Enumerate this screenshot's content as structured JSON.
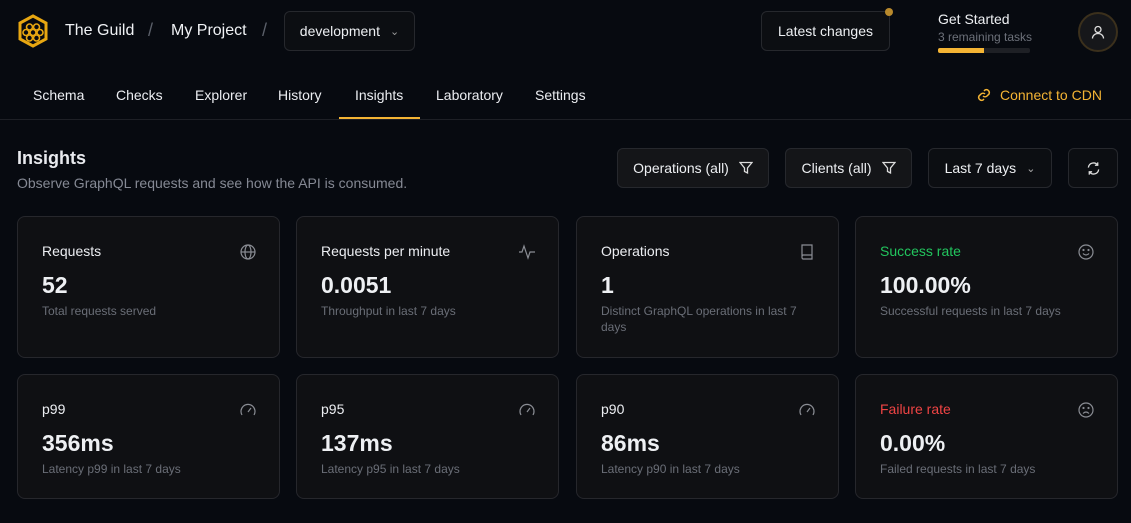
{
  "header": {
    "org": "The Guild",
    "project": "My Project",
    "target": "development",
    "latest_changes": "Latest changes",
    "get_started": {
      "title": "Get Started",
      "subtitle": "3 remaining tasks",
      "progress": 0.5
    }
  },
  "nav": {
    "tabs": [
      "Schema",
      "Checks",
      "Explorer",
      "History",
      "Insights",
      "Laboratory",
      "Settings"
    ],
    "active": "Insights",
    "cdn": "Connect to CDN"
  },
  "page": {
    "title": "Insights",
    "subtitle": "Observe GraphQL requests and see how the API is consumed.",
    "filters": {
      "operations": "Operations (all)",
      "clients": "Clients (all)",
      "range": "Last 7 days"
    }
  },
  "cards": [
    {
      "title": "Requests",
      "value": "52",
      "desc": "Total requests served",
      "icon": "globe-icon"
    },
    {
      "title": "Requests per minute",
      "value": "0.0051",
      "desc": "Throughput in last 7 days",
      "icon": "activity-icon"
    },
    {
      "title": "Operations",
      "value": "1",
      "desc": "Distinct GraphQL operations in last 7 days",
      "icon": "book-icon"
    },
    {
      "title": "Success rate",
      "value": "100.00%",
      "desc": "Successful requests in last 7 days",
      "icon": "smile-icon",
      "color": "#22c55e"
    },
    {
      "title": "p99",
      "value": "356ms",
      "desc": "Latency p99 in last 7 days",
      "icon": "gauge-icon"
    },
    {
      "title": "p95",
      "value": "137ms",
      "desc": "Latency p95 in last 7 days",
      "icon": "gauge-icon"
    },
    {
      "title": "p90",
      "value": "86ms",
      "desc": "Latency p90 in last 7 days",
      "icon": "gauge-icon"
    },
    {
      "title": "Failure rate",
      "value": "0.00%",
      "desc": "Failed requests in last 7 days",
      "icon": "frown-icon",
      "color": "#ef4444"
    }
  ],
  "colors": {
    "accent": "#f4b434"
  }
}
